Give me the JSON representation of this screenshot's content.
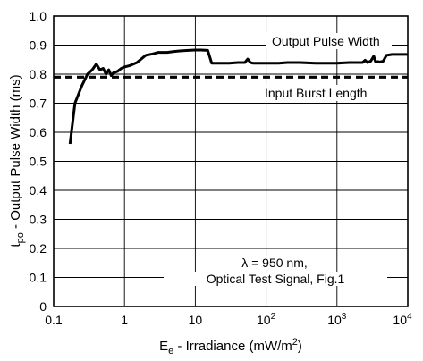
{
  "chart_data": {
    "type": "line",
    "xscale": "log",
    "xlim": [
      0.1,
      10000
    ],
    "ylim": [
      0,
      1.0
    ],
    "grid": true,
    "xlabel": {
      "main": "E",
      "sub": "e",
      "rest": " - Irradiance (mW/m",
      "sup": "2",
      "end": ")"
    },
    "ylabel": {
      "main": "t",
      "sub": "po",
      "rest": " - Output Pulse Width (ms)"
    },
    "x_ticks": [
      {
        "value": 0.1,
        "label": "0.1"
      },
      {
        "value": 1,
        "label": "1"
      },
      {
        "value": 10,
        "label": "10"
      },
      {
        "value": 100,
        "base": "10",
        "exp": "2"
      },
      {
        "value": 1000,
        "base": "10",
        "exp": "3"
      },
      {
        "value": 10000,
        "base": "10",
        "exp": "4"
      }
    ],
    "y_ticks": [
      "0",
      "0.1",
      "0.2",
      "0.3",
      "0.4",
      "0.5",
      "0.6",
      "0.7",
      "0.8",
      "0.9",
      "1.0"
    ],
    "series": [
      {
        "name": "Output Pulse Width",
        "style": "solid",
        "x": [
          0.17,
          0.2,
          0.25,
          0.3,
          0.35,
          0.4,
          0.45,
          0.5,
          0.55,
          0.6,
          0.65,
          0.7,
          0.8,
          0.9,
          1.0,
          1.2,
          1.5,
          2.0,
          2.5,
          3,
          4,
          5,
          6,
          8,
          10,
          12,
          15,
          17,
          20,
          30,
          40,
          50,
          55,
          60,
          65,
          70,
          100,
          150,
          200,
          300,
          500,
          700,
          1000,
          1500,
          2000,
          2300,
          2500,
          2700,
          3000,
          3300,
          3500,
          3800,
          4000,
          4500,
          5000,
          6000,
          7000,
          8000,
          10000
        ],
        "y": [
          0.56,
          0.7,
          0.76,
          0.8,
          0.815,
          0.835,
          0.815,
          0.82,
          0.8,
          0.815,
          0.795,
          0.805,
          0.81,
          0.82,
          0.825,
          0.83,
          0.84,
          0.865,
          0.87,
          0.875,
          0.875,
          0.878,
          0.88,
          0.882,
          0.883,
          0.883,
          0.882,
          0.838,
          0.838,
          0.838,
          0.84,
          0.84,
          0.852,
          0.84,
          0.838,
          0.838,
          0.838,
          0.838,
          0.84,
          0.84,
          0.838,
          0.838,
          0.838,
          0.84,
          0.84,
          0.84,
          0.848,
          0.84,
          0.845,
          0.862,
          0.843,
          0.843,
          0.842,
          0.845,
          0.865,
          0.868,
          0.868,
          0.868,
          0.868
        ]
      },
      {
        "name": "Input Burst Length",
        "style": "dashed",
        "x": [
          0.1,
          10000
        ],
        "y": [
          0.79,
          0.79
        ]
      }
    ],
    "annotations": {
      "output": "Output Pulse Width",
      "input": "Input Burst Length",
      "condition_line1": "λ = 950 nm,",
      "condition_line2": "Optical Test Signal, Fig.1"
    }
  }
}
